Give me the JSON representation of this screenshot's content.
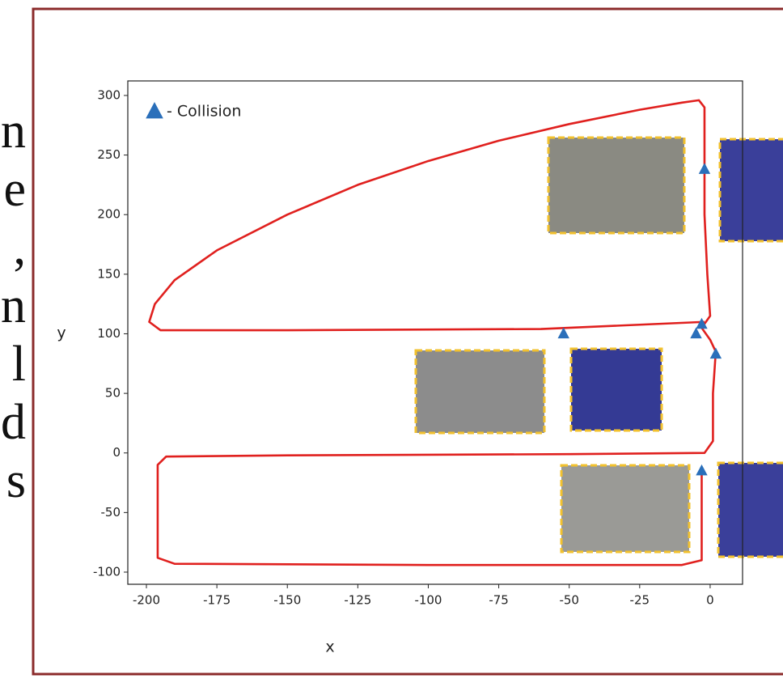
{
  "slide_text": [
    "n",
    "e",
    ",",
    "n",
    "l",
    "d",
    "s"
  ],
  "chart_data": {
    "type": "line",
    "xlabel": "x",
    "ylabel": "y",
    "xlim": [
      -206.6,
      11.5
    ],
    "ylim": [
      -110.2,
      312.2
    ],
    "xticks": [
      -200,
      -175,
      -150,
      -125,
      -100,
      -75,
      -50,
      -25,
      0
    ],
    "yticks": [
      -100,
      -50,
      0,
      50,
      100,
      150,
      200,
      250,
      300
    ],
    "series": [
      {
        "color": "#e0201e",
        "x": [
          -2,
          -60,
          -150,
          -195,
          -199,
          -197,
          -190,
          -175,
          -150,
          -125,
          -100,
          -75,
          -50,
          -25,
          -10,
          -4,
          -2,
          -2,
          -2,
          -1,
          0,
          -3,
          0,
          2,
          1,
          1,
          -2,
          -50,
          -150,
          -193,
          -196,
          -196,
          -196,
          -190,
          -100,
          -10,
          -3,
          -3,
          -3
        ],
        "values": [
          110,
          104,
          103,
          103,
          110,
          125,
          145,
          170,
          200,
          225,
          245,
          262,
          276,
          288,
          294,
          296,
          290,
          260,
          200,
          150,
          115,
          105,
          95,
          85,
          50,
          10,
          0,
          -1,
          -2,
          -3,
          -10,
          -50,
          -88,
          -93,
          -94,
          -94,
          -90,
          -50,
          -15
        ]
      },
      {
        "type": "scatter",
        "name": "- Collision",
        "color": "#2a6fba",
        "x": [
          -2,
          -52,
          -3,
          2,
          -5,
          -3
        ],
        "values": [
          238,
          100,
          108,
          83,
          100,
          -15
        ]
      }
    ]
  }
}
